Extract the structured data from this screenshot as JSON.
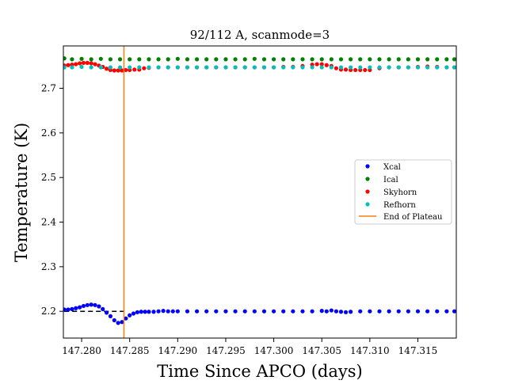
{
  "chart_data": {
    "type": "scatter",
    "title": "92/112 A, scanmode=3",
    "xlabel": "Time Since APCO (days)",
    "ylabel": "Temperature (K)",
    "xlim": [
      147.2781,
      147.319
    ],
    "ylim": [
      2.14,
      2.795
    ],
    "x_ticks": [
      147.28,
      147.285,
      147.29,
      147.295,
      147.3,
      147.305,
      147.31,
      147.315
    ],
    "x_tick_labels": [
      "147.280",
      "147.285",
      "147.290",
      "147.295",
      "147.300",
      "147.305",
      "147.310",
      "147.315"
    ],
    "y_ticks": [
      2.2,
      2.3,
      2.4,
      2.5,
      2.6,
      2.7
    ],
    "y_tick_labels": [
      "2.2",
      "2.3",
      "2.4",
      "2.5",
      "2.6",
      "2.7"
    ],
    "grid": false,
    "legend_position": "center-right",
    "series": [
      {
        "name": "Xcal",
        "color": "#0000ff",
        "marker": "dot",
        "x": [
          147.2782,
          147.2786,
          147.279,
          147.2794,
          147.2798,
          147.2802,
          147.2806,
          147.281,
          147.2814,
          147.2818,
          147.2822,
          147.2826,
          147.283,
          147.2834,
          147.2838,
          147.2842,
          147.2846,
          147.285,
          147.2854,
          147.2858,
          147.2862,
          147.2866,
          147.287,
          147.2875,
          147.288,
          147.2885,
          147.289,
          147.2895,
          147.29,
          147.291,
          147.292,
          147.293,
          147.294,
          147.295,
          147.296,
          147.297,
          147.298,
          147.299,
          147.3,
          147.301,
          147.302,
          147.303,
          147.304,
          147.305,
          147.3055,
          147.306,
          147.3065,
          147.307,
          147.3075,
          147.308,
          147.309,
          147.31,
          147.311,
          147.312,
          147.313,
          147.314,
          147.315,
          147.316,
          147.317,
          147.318,
          147.3188
        ],
        "y": [
          2.204,
          2.204,
          2.205,
          2.207,
          2.209,
          2.212,
          2.214,
          2.215,
          2.214,
          2.211,
          2.205,
          2.197,
          2.189,
          2.18,
          2.174,
          2.176,
          2.184,
          2.191,
          2.195,
          2.198,
          2.199,
          2.199,
          2.199,
          2.199,
          2.2,
          2.201,
          2.2,
          2.2,
          2.2,
          2.2,
          2.2,
          2.2,
          2.2,
          2.2,
          2.2,
          2.2,
          2.2,
          2.2,
          2.2,
          2.2,
          2.2,
          2.2,
          2.2,
          2.201,
          2.2,
          2.202,
          2.2,
          2.199,
          2.198,
          2.199,
          2.2,
          2.2,
          2.2,
          2.2,
          2.2,
          2.2,
          2.2,
          2.2,
          2.2,
          2.2,
          2.2
        ]
      },
      {
        "name": "Ical",
        "color": "#008000",
        "marker": "dot",
        "x": [
          147.2782,
          147.279,
          147.28,
          147.281,
          147.282,
          147.283,
          147.284,
          147.285,
          147.286,
          147.287,
          147.288,
          147.289,
          147.29,
          147.291,
          147.292,
          147.293,
          147.294,
          147.295,
          147.296,
          147.297,
          147.298,
          147.299,
          147.3,
          147.301,
          147.302,
          147.303,
          147.304,
          147.305,
          147.306,
          147.307,
          147.308,
          147.309,
          147.31,
          147.311,
          147.312,
          147.313,
          147.314,
          147.315,
          147.316,
          147.317,
          147.318,
          147.3188
        ],
        "y": [
          2.767,
          2.765,
          2.766,
          2.765,
          2.766,
          2.765,
          2.765,
          2.765,
          2.765,
          2.765,
          2.765,
          2.765,
          2.766,
          2.765,
          2.765,
          2.765,
          2.765,
          2.765,
          2.765,
          2.765,
          2.766,
          2.765,
          2.765,
          2.765,
          2.765,
          2.765,
          2.765,
          2.765,
          2.765,
          2.765,
          2.765,
          2.765,
          2.765,
          2.765,
          2.765,
          2.765,
          2.765,
          2.765,
          2.765,
          2.765,
          2.765,
          2.765
        ]
      },
      {
        "name": "Skyhorn",
        "color": "#ff0000",
        "marker": "dot",
        "x": [
          147.2782,
          147.2786,
          147.279,
          147.2794,
          147.2798,
          147.2802,
          147.2806,
          147.281,
          147.2814,
          147.2818,
          147.2822,
          147.2826,
          147.283,
          147.2834,
          147.2838,
          147.2842,
          147.2846,
          147.285,
          147.2855,
          147.286,
          147.2865,
          147.287,
          147.288,
          147.289,
          147.29,
          147.291,
          147.292,
          147.293,
          147.294,
          147.295,
          147.296,
          147.297,
          147.298,
          147.299,
          147.3,
          147.301,
          147.302,
          147.303,
          147.304,
          147.3045,
          147.305,
          147.3055,
          147.306,
          147.3065,
          147.307,
          147.3075,
          147.308,
          147.3085,
          147.309,
          147.3095,
          147.31,
          147.311,
          147.312,
          147.313,
          147.314,
          147.315,
          147.316,
          147.317,
          147.318,
          147.3188
        ],
        "y": [
          2.751,
          2.752,
          2.753,
          2.754,
          2.756,
          2.757,
          2.757,
          2.756,
          2.754,
          2.751,
          2.748,
          2.744,
          2.741,
          2.74,
          2.74,
          2.74,
          2.741,
          2.741,
          2.742,
          2.742,
          2.745,
          2.746,
          2.747,
          2.747,
          2.747,
          2.747,
          2.747,
          2.747,
          2.747,
          2.747,
          2.747,
          2.747,
          2.747,
          2.747,
          2.747,
          2.748,
          2.748,
          2.75,
          2.753,
          2.754,
          2.754,
          2.752,
          2.75,
          2.745,
          2.742,
          2.742,
          2.741,
          2.741,
          2.741,
          2.741,
          2.741,
          2.745,
          2.747,
          2.747,
          2.747,
          2.748,
          2.749,
          2.748,
          2.747,
          2.747
        ]
      },
      {
        "name": "Refhorn",
        "color": "#00bfbf",
        "marker": "dot",
        "x": [
          147.2782,
          147.279,
          147.28,
          147.281,
          147.282,
          147.283,
          147.284,
          147.285,
          147.286,
          147.287,
          147.288,
          147.289,
          147.29,
          147.291,
          147.292,
          147.293,
          147.294,
          147.295,
          147.296,
          147.297,
          147.298,
          147.299,
          147.3,
          147.301,
          147.302,
          147.303,
          147.304,
          147.305,
          147.306,
          147.307,
          147.308,
          147.309,
          147.31,
          147.311,
          147.312,
          147.313,
          147.314,
          147.315,
          147.316,
          147.317,
          147.318,
          147.3188
        ],
        "y": [
          2.747,
          2.747,
          2.748,
          2.747,
          2.747,
          2.747,
          2.747,
          2.747,
          2.747,
          2.747,
          2.747,
          2.747,
          2.747,
          2.747,
          2.747,
          2.747,
          2.747,
          2.747,
          2.747,
          2.747,
          2.747,
          2.747,
          2.747,
          2.747,
          2.747,
          2.747,
          2.747,
          2.747,
          2.747,
          2.747,
          2.747,
          2.747,
          2.747,
          2.747,
          2.747,
          2.747,
          2.747,
          2.747,
          2.747,
          2.747,
          2.747,
          2.747
        ]
      },
      {
        "name": "End of Plateau",
        "type": "vertical-line",
        "color": "#ff7f0e",
        "x": 147.2844
      }
    ],
    "reference_line": {
      "style": "dashed",
      "color": "#000000",
      "y": 2.2,
      "x_range": [
        147.2782,
        147.2845
      ]
    }
  }
}
